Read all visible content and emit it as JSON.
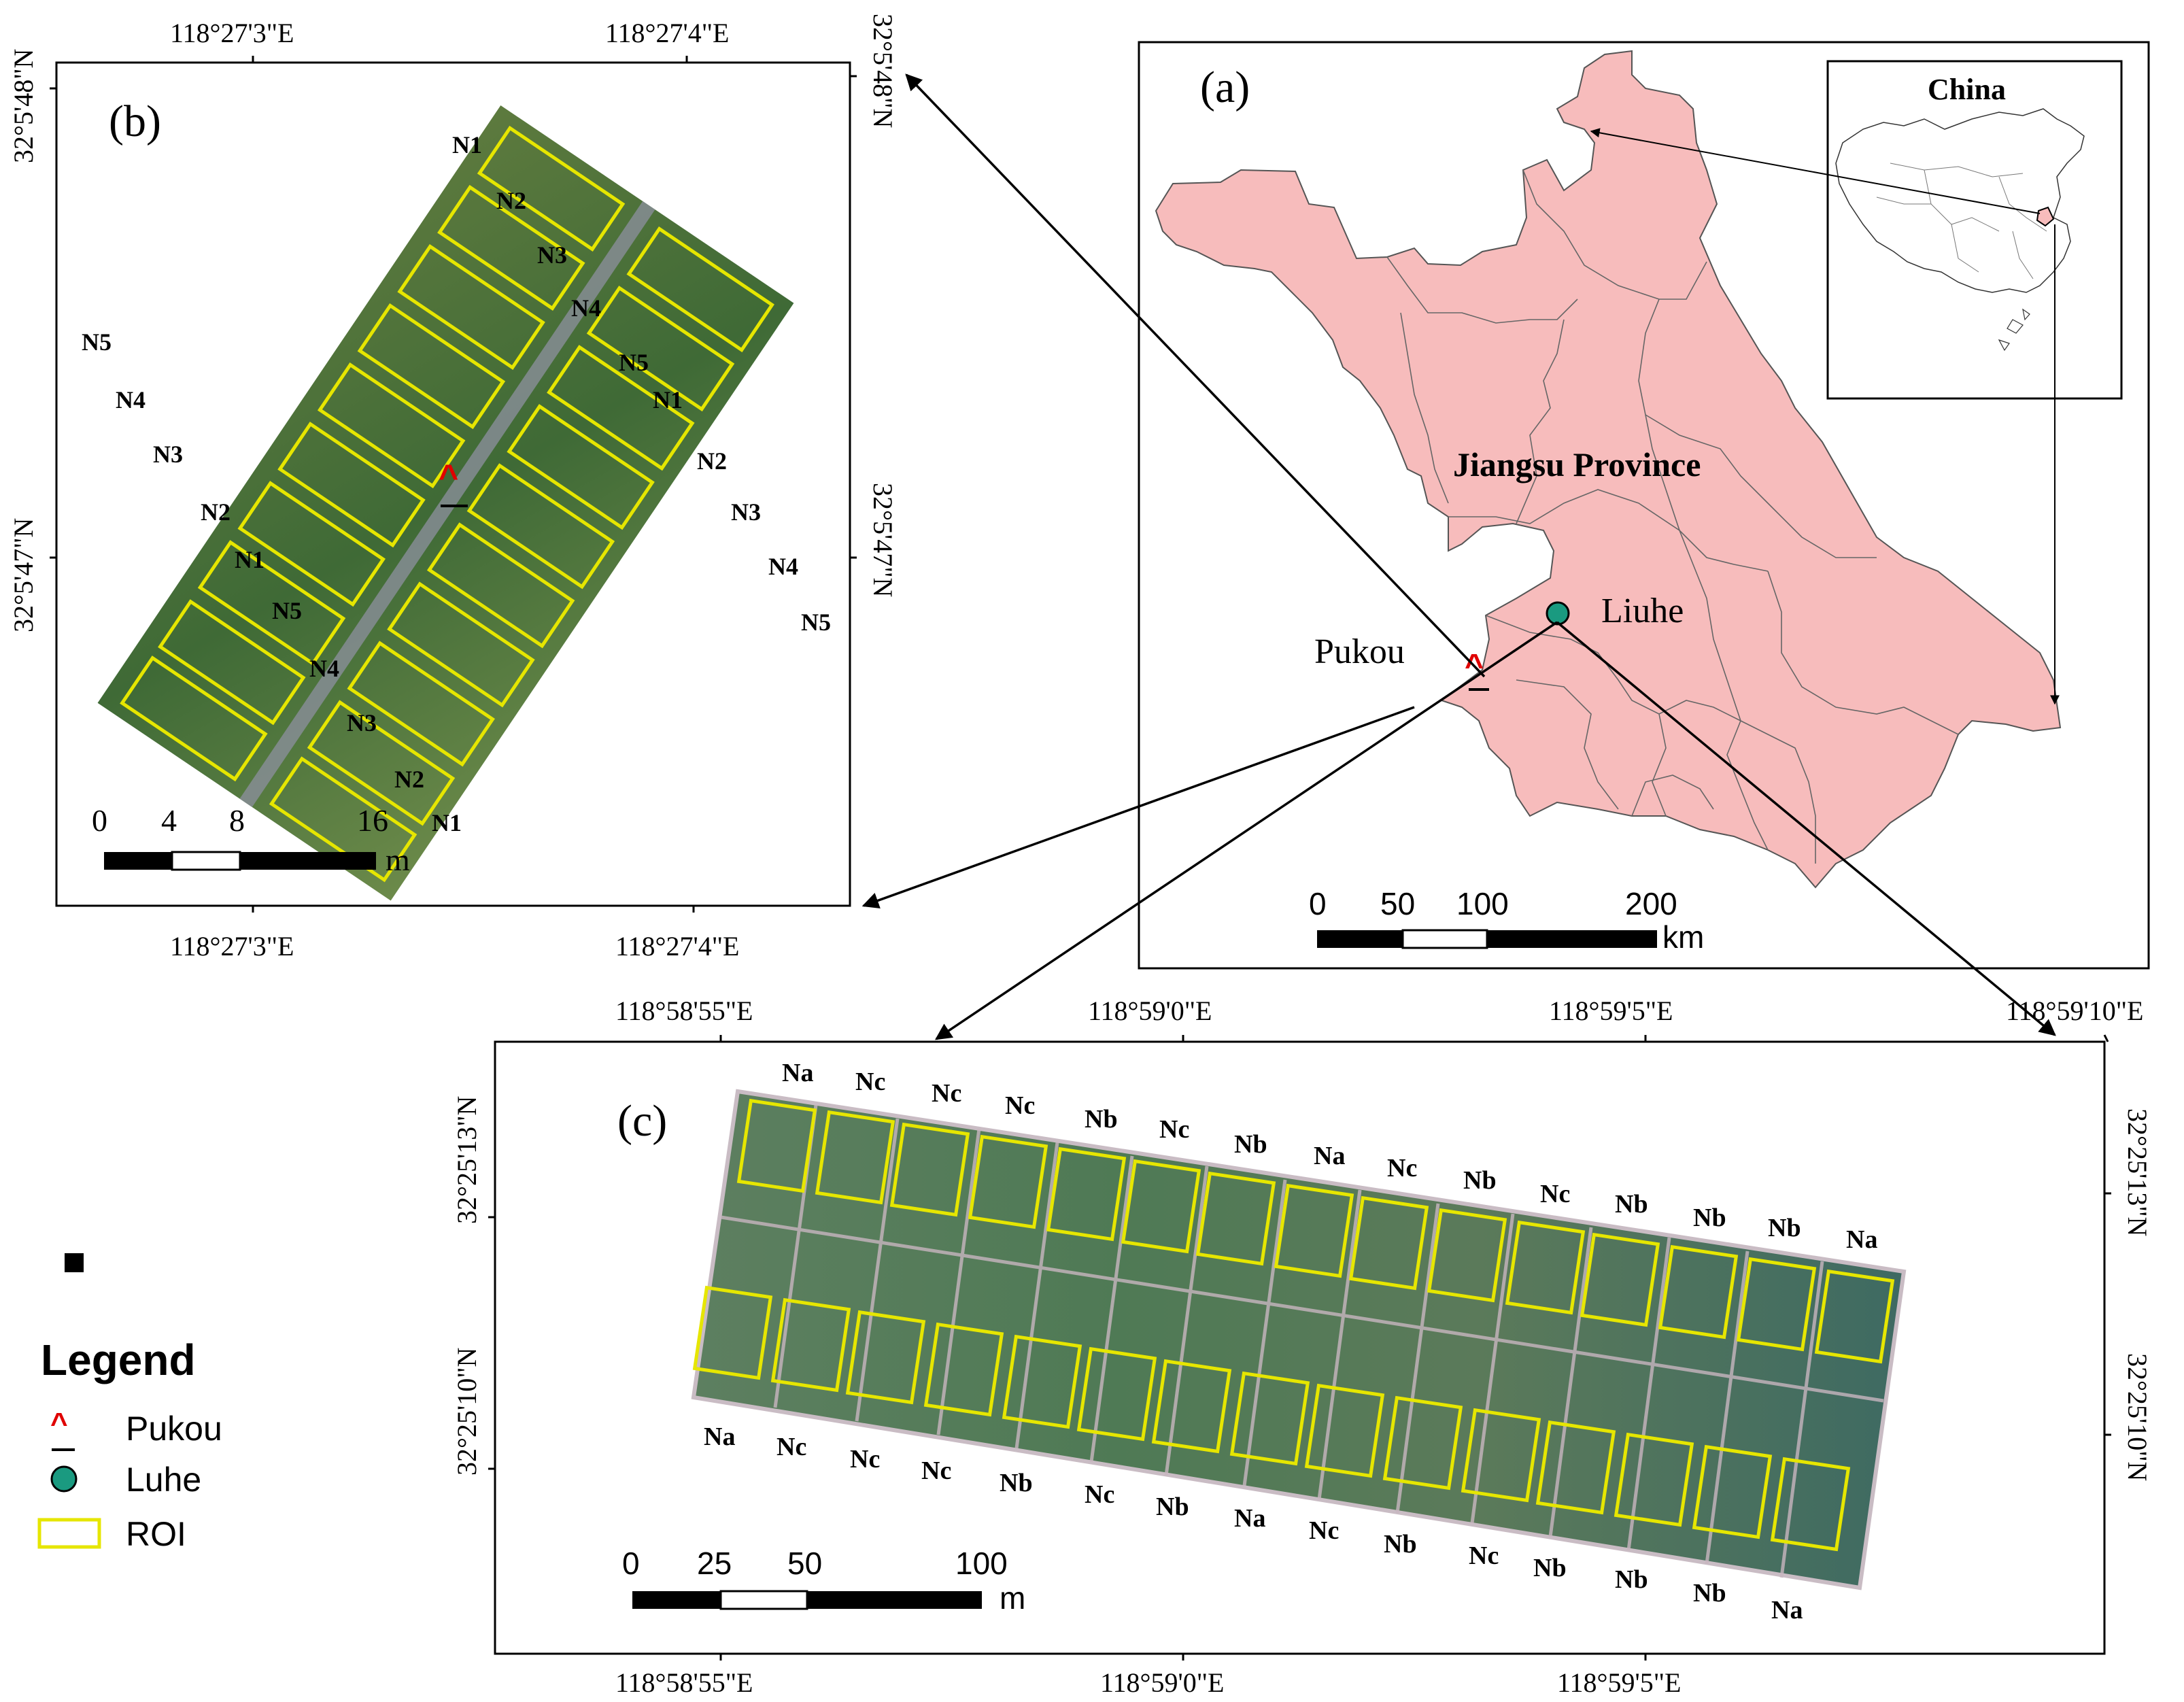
{
  "panel_a": {
    "label": "(a)",
    "inset_title": "China",
    "province": "Jiangsu Province",
    "site_pukou": "Pukou",
    "site_liuhe": "Liuhe",
    "scale": {
      "ticks": [
        "0",
        "50",
        "100",
        "200"
      ],
      "unit": "km"
    }
  },
  "panel_b": {
    "label": "(b)",
    "top_ticks": [
      "118°27'3\"E",
      "118°27'4\"E"
    ],
    "bottom_ticks": [
      "118°27'3\"E",
      "118°27'4\"E"
    ],
    "left_ticks": [
      "32°5'48\"N",
      "32°5'47\"N"
    ],
    "right_ticks": [
      "32°5'48\"N",
      "32°5'47\"N"
    ],
    "right_col_labels": [
      "N1",
      "N2",
      "N3",
      "N4",
      "N5",
      "N1",
      "N2",
      "N3",
      "N4",
      "N5"
    ],
    "left_col_labels": [
      "N5",
      "N4",
      "N3",
      "N2",
      "N1",
      "N5",
      "N4",
      "N3",
      "N2",
      "N1"
    ],
    "scale": {
      "ticks": [
        "0",
        "4",
        "8",
        "16"
      ],
      "unit": "m"
    }
  },
  "panel_c": {
    "label": "(c)",
    "top_ticks": [
      "118°58'55\"E",
      "118°59'0\"E",
      "118°59'5\"E",
      "118°59'10\"E"
    ],
    "bottom_ticks": [
      "118°58'55\"E",
      "118°59'0\"E",
      "118°59'5\"E"
    ],
    "left_ticks": [
      "32°25'13\"N",
      "32°25'10\"N"
    ],
    "right_ticks": [
      "32°25'13\"N",
      "32°25'10\"N"
    ],
    "top_labels": [
      "Na",
      "Nc",
      "Nc",
      "Nc",
      "Nb",
      "Nc",
      "Nb",
      "Na",
      "Nc",
      "Nb",
      "Nc",
      "Nb",
      "Nb",
      "Nb",
      "Na"
    ],
    "bottom_labels": [
      "Na",
      "Nc",
      "Nc",
      "Nc",
      "Nb",
      "Nc",
      "Nb",
      "Na",
      "Nc",
      "Nb",
      "Nc",
      "Nb",
      "Nb",
      "Nb",
      "Na"
    ],
    "scale": {
      "ticks": [
        "0",
        "25",
        "50",
        "100"
      ],
      "unit": "m"
    }
  },
  "legend": {
    "title": "Legend",
    "items": [
      "Pukou",
      "Luhe",
      "ROI"
    ]
  },
  "colors": {
    "province_fill": "#f7bcbc",
    "roi": "#e6e600",
    "site_marker": "#1a9a80",
    "pukou_marker": "#e00000"
  }
}
